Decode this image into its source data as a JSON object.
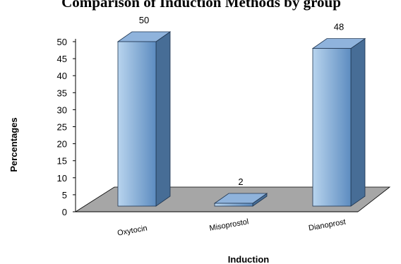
{
  "chart_data": {
    "type": "bar",
    "title": "Comparison of Induction Methods by group",
    "xlabel": "Induction",
    "ylabel": "Percentages",
    "categories": [
      "Oxytocin",
      "Misoprostol",
      "Dianoprost"
    ],
    "values": [
      50,
      2,
      48
    ],
    "data_labels": [
      "50",
      "2",
      "48"
    ],
    "ylim": [
      0,
      50
    ],
    "yticks": [
      "0",
      "5",
      "10",
      "15",
      "20",
      "25",
      "30",
      "35",
      "40",
      "45",
      "50"
    ],
    "grid": false,
    "legend": "none",
    "three_d": true,
    "colors": {
      "bar_front_light": "#b8d4ee",
      "bar_front_dark": "#5d8cc0",
      "bar_side": "#476d96",
      "bar_top": "#8fb3dc",
      "floor": "#a6a6a6"
    }
  }
}
